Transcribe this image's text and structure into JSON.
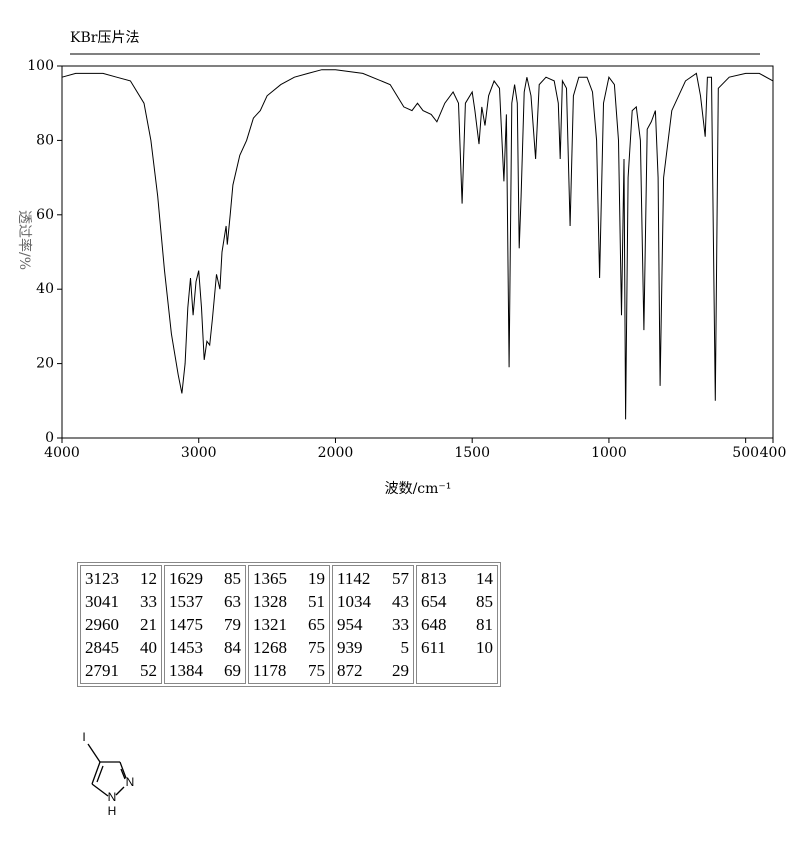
{
  "chart_data": {
    "type": "line",
    "title": "KBr压片法",
    "xlabel": "波数/cm⁻¹",
    "ylabel": "透过率/%",
    "xlim": [
      4000,
      400
    ],
    "x_scale_break": 2000,
    "xticks": [
      4000,
      3000,
      2000,
      1500,
      1000,
      500,
      400
    ],
    "ylim": [
      0,
      100
    ],
    "yticks": [
      0,
      20,
      40,
      60,
      80,
      100
    ],
    "x": [
      4000,
      3900,
      3800,
      3700,
      3600,
      3500,
      3400,
      3350,
      3300,
      3250,
      3200,
      3150,
      3123,
      3100,
      3080,
      3060,
      3041,
      3020,
      3000,
      2980,
      2960,
      2940,
      2920,
      2900,
      2870,
      2845,
      2830,
      2800,
      2791,
      2770,
      2750,
      2700,
      2650,
      2600,
      2550,
      2500,
      2400,
      2300,
      2200,
      2100,
      2000,
      1900,
      1800,
      1750,
      1720,
      1700,
      1680,
      1650,
      1629,
      1600,
      1570,
      1550,
      1537,
      1525,
      1500,
      1490,
      1475,
      1465,
      1453,
      1440,
      1420,
      1400,
      1384,
      1375,
      1365,
      1355,
      1345,
      1335,
      1328,
      1321,
      1310,
      1300,
      1285,
      1268,
      1255,
      1230,
      1200,
      1185,
      1178,
      1170,
      1155,
      1142,
      1130,
      1110,
      1080,
      1060,
      1045,
      1034,
      1020,
      1000,
      980,
      965,
      954,
      945,
      939,
      930,
      915,
      900,
      885,
      872,
      860,
      845,
      830,
      820,
      813,
      800,
      770,
      720,
      680,
      665,
      654,
      648,
      640,
      625,
      611,
      600,
      560,
      500,
      450,
      400
    ],
    "series": [
      {
        "name": "spectrum",
        "color": "#000000",
        "values": [
          97,
          98,
          98,
          98,
          97,
          96,
          90,
          80,
          65,
          45,
          28,
          17,
          12,
          20,
          35,
          43,
          33,
          42,
          45,
          35,
          21,
          26,
          25,
          32,
          44,
          40,
          50,
          57,
          52,
          60,
          68,
          76,
          80,
          86,
          88,
          92,
          95,
          97,
          98,
          99,
          99,
          98,
          95,
          89,
          88,
          90,
          88,
          87,
          85,
          90,
          93,
          90,
          63,
          90,
          93,
          88,
          79,
          89,
          84,
          92,
          96,
          94,
          69,
          87,
          19,
          90,
          95,
          90,
          51,
          65,
          93,
          97,
          92,
          75,
          95,
          97,
          96,
          90,
          75,
          96,
          94,
          57,
          92,
          97,
          97,
          93,
          80,
          43,
          90,
          97,
          95,
          80,
          33,
          75,
          5,
          70,
          88,
          89,
          80,
          29,
          83,
          85,
          88,
          70,
          14,
          70,
          88,
          96,
          98,
          92,
          85,
          81,
          97,
          97,
          10,
          94,
          97,
          98,
          98,
          96
        ]
      }
    ]
  },
  "table": {
    "rows": [
      [
        [
          3123,
          12
        ],
        [
          1629,
          85
        ],
        [
          1365,
          19
        ],
        [
          1142,
          57
        ],
        [
          813,
          14
        ]
      ],
      [
        [
          3041,
          33
        ],
        [
          1537,
          63
        ],
        [
          1328,
          51
        ],
        [
          1034,
          43
        ],
        [
          654,
          85
        ]
      ],
      [
        [
          2960,
          21
        ],
        [
          1475,
          79
        ],
        [
          1321,
          65
        ],
        [
          954,
          33
        ],
        [
          648,
          81
        ]
      ],
      [
        [
          2845,
          40
        ],
        [
          1453,
          84
        ],
        [
          1268,
          75
        ],
        [
          939,
          5
        ],
        [
          611,
          10
        ]
      ],
      [
        [
          2791,
          52
        ],
        [
          1384,
          69
        ],
        [
          1178,
          75
        ],
        [
          872,
          29
        ]
      ]
    ]
  },
  "molecule": {
    "atoms": [
      "I",
      "N",
      "N",
      "H"
    ]
  }
}
